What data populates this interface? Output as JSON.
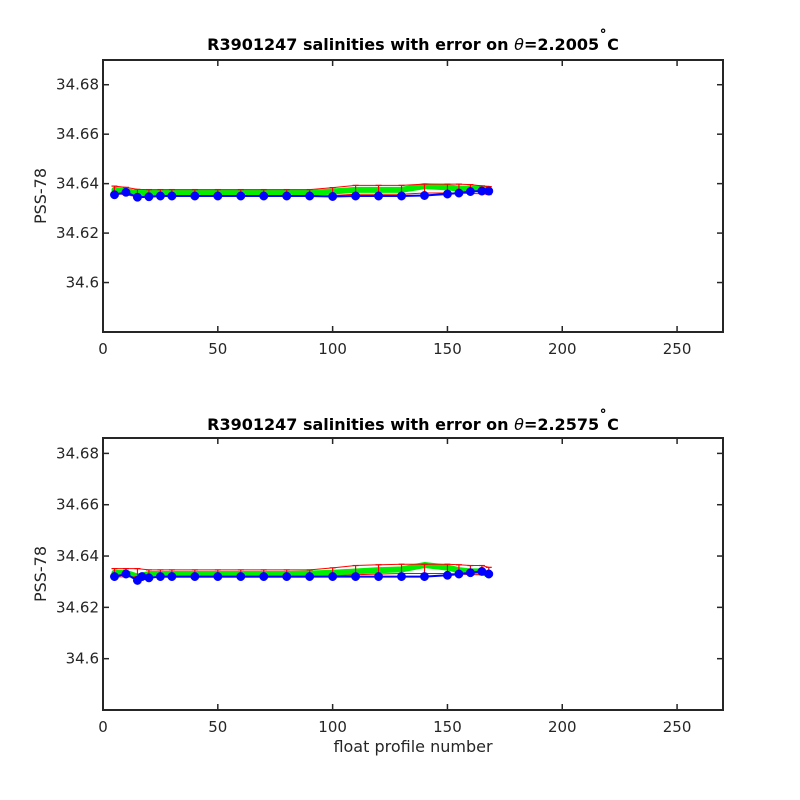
{
  "chart_data": [
    {
      "type": "scatter",
      "title": {
        "prefix": "R3901247 salinities with error on ",
        "theta": "θ",
        "value": "=2.2005",
        "degree": "˚",
        "unit": "C"
      },
      "xlabel": "",
      "ylabel": "PSS-78",
      "xlim": [
        0,
        270
      ],
      "ylim": [
        34.58,
        34.69
      ],
      "xticks": [
        0,
        50,
        100,
        150,
        200,
        250
      ],
      "yticks": [
        34.6,
        34.62,
        34.64,
        34.66,
        34.68
      ],
      "ytick_labels": [
        "34.6",
        "34.62",
        "34.64",
        "34.66",
        "34.68"
      ],
      "grid": false,
      "series": [
        {
          "role": "float_salinity",
          "color": "#0000ff",
          "x": [
            5,
            10,
            15,
            20,
            25,
            30,
            40,
            50,
            60,
            70,
            80,
            90,
            100,
            110,
            120,
            130,
            140,
            150,
            155,
            160,
            165,
            168
          ],
          "y": [
            34.6355,
            34.6365,
            34.6345,
            34.6347,
            34.635,
            34.635,
            34.635,
            34.635,
            34.635,
            34.635,
            34.635,
            34.635,
            34.6348,
            34.635,
            34.635,
            34.635,
            34.6352,
            34.6358,
            34.6362,
            34.6368,
            34.637,
            34.637
          ]
        },
        {
          "role": "mapped_salinity",
          "color": "#00ee00",
          "x": [
            5,
            10,
            15,
            20,
            25,
            30,
            40,
            50,
            60,
            70,
            80,
            90,
            100,
            110,
            120,
            130,
            140,
            150,
            155,
            160,
            165,
            168
          ],
          "y": [
            34.6375,
            34.637,
            34.6362,
            34.6362,
            34.6362,
            34.6362,
            34.6362,
            34.6362,
            34.6362,
            34.6362,
            34.6362,
            34.6362,
            34.6368,
            34.6375,
            34.6375,
            34.6375,
            34.639,
            34.6385,
            34.638,
            34.638,
            34.638,
            34.638
          ]
        },
        {
          "role": "error_bars",
          "color": "#ff0000",
          "x": [
            5,
            10,
            15,
            20,
            25,
            30,
            40,
            50,
            60,
            70,
            80,
            90,
            100,
            110,
            120,
            130,
            140,
            150,
            155,
            160,
            165,
            168
          ],
          "y": [
            34.6375,
            34.637,
            34.6362,
            34.6362,
            34.6362,
            34.6362,
            34.6362,
            34.6362,
            34.6362,
            34.6362,
            34.6362,
            34.6362,
            34.6368,
            34.6375,
            34.6375,
            34.6375,
            34.638,
            34.638,
            34.638,
            34.6378,
            34.6375,
            34.6372
          ],
          "err": [
            0.0015,
            0.0015,
            0.0015,
            0.0014,
            0.0014,
            0.0014,
            0.0014,
            0.0014,
            0.0014,
            0.0014,
            0.0014,
            0.0014,
            0.0016,
            0.0018,
            0.0018,
            0.0018,
            0.0018,
            0.0018,
            0.0018,
            0.0018,
            0.0016,
            0.0016
          ]
        }
      ]
    },
    {
      "type": "scatter",
      "title": {
        "prefix": "R3901247 salinities with error on ",
        "theta": "θ",
        "value": "=2.2575",
        "degree": "˚",
        "unit": "C"
      },
      "xlabel": "float profile number",
      "ylabel": "PSS-78",
      "xlim": [
        0,
        270
      ],
      "ylim": [
        34.58,
        34.686
      ],
      "xticks": [
        0,
        50,
        100,
        150,
        200,
        250
      ],
      "yticks": [
        34.6,
        34.62,
        34.64,
        34.66,
        34.68
      ],
      "ytick_labels": [
        "34.6",
        "34.62",
        "34.64",
        "34.66",
        "34.68"
      ],
      "grid": false,
      "series": [
        {
          "role": "float_salinity",
          "color": "#0000ff",
          "x": [
            5,
            10,
            15,
            17,
            20,
            25,
            30,
            40,
            50,
            60,
            70,
            80,
            90,
            100,
            110,
            120,
            130,
            140,
            150,
            155,
            160,
            165,
            168
          ],
          "y": [
            34.632,
            34.633,
            34.6305,
            34.632,
            34.6315,
            34.632,
            34.632,
            34.632,
            34.632,
            34.632,
            34.632,
            34.632,
            34.632,
            34.632,
            34.632,
            34.632,
            34.632,
            34.632,
            34.6325,
            34.633,
            34.6335,
            34.634,
            34.633
          ]
        },
        {
          "role": "mapped_salinity",
          "color": "#00ee00",
          "x": [
            5,
            10,
            15,
            20,
            25,
            30,
            40,
            50,
            60,
            70,
            80,
            90,
            100,
            110,
            120,
            130,
            140,
            150,
            155,
            160,
            165,
            168
          ],
          "y": [
            34.6335,
            34.6335,
            34.632,
            34.633,
            34.633,
            34.633,
            34.633,
            34.633,
            34.633,
            34.633,
            34.633,
            34.6332,
            34.6335,
            34.634,
            34.6345,
            34.6348,
            34.6365,
            34.6355,
            34.6345,
            34.634,
            34.634,
            34.6325
          ]
        },
        {
          "role": "error_bars",
          "color": "#ff0000",
          "x": [
            5,
            10,
            15,
            20,
            25,
            30,
            40,
            50,
            60,
            70,
            80,
            90,
            100,
            110,
            120,
            130,
            140,
            150,
            155,
            160,
            165,
            168
          ],
          "y": [
            34.6335,
            34.6335,
            34.6335,
            34.6332,
            34.6332,
            34.6332,
            34.6332,
            34.6332,
            34.6332,
            34.6332,
            34.6332,
            34.6332,
            34.6338,
            34.6345,
            34.6348,
            34.635,
            34.635,
            34.635,
            34.6348,
            34.6345,
            34.6345,
            34.634
          ],
          "err": [
            0.0016,
            0.0016,
            0.0016,
            0.0014,
            0.0014,
            0.0014,
            0.0014,
            0.0014,
            0.0014,
            0.0014,
            0.0014,
            0.0014,
            0.0016,
            0.0018,
            0.0018,
            0.0018,
            0.0018,
            0.0018,
            0.0018,
            0.0018,
            0.0018,
            0.0016
          ]
        }
      ]
    }
  ]
}
